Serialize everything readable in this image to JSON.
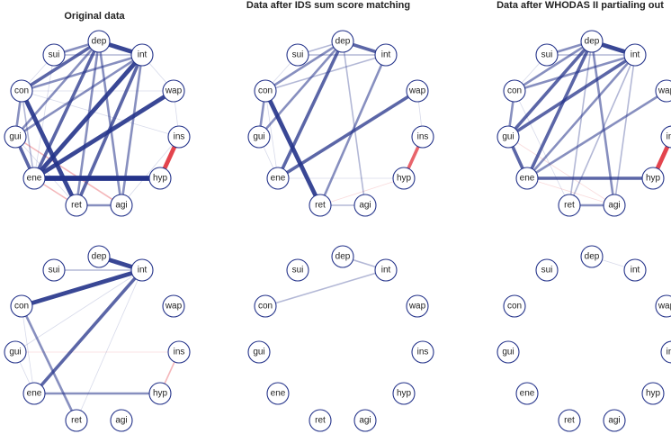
{
  "panels": [
    {
      "title": "Original data",
      "edges": [
        [
          "dep",
          "int",
          5,
          "pos"
        ],
        [
          "dep",
          "sui",
          3,
          "pos"
        ],
        [
          "dep",
          "con",
          4,
          "pos"
        ],
        [
          "dep",
          "gui",
          3,
          "pos"
        ],
        [
          "dep",
          "ene",
          4,
          "pos"
        ],
        [
          "dep",
          "ret",
          3,
          "pos"
        ],
        [
          "dep",
          "agi",
          3,
          "pos"
        ],
        [
          "int",
          "sui",
          2,
          "pos"
        ],
        [
          "int",
          "con",
          3,
          "pos"
        ],
        [
          "int",
          "gui",
          3,
          "pos"
        ],
        [
          "int",
          "ene",
          5,
          "pos"
        ],
        [
          "int",
          "ret",
          4,
          "pos"
        ],
        [
          "int",
          "agi",
          3,
          "pos"
        ],
        [
          "int",
          "wap",
          1,
          "pos"
        ],
        [
          "sui",
          "con",
          1,
          "pos"
        ],
        [
          "con",
          "gui",
          3,
          "pos"
        ],
        [
          "con",
          "ret",
          5,
          "pos"
        ],
        [
          "con",
          "ene",
          2,
          "pos"
        ],
        [
          "con",
          "wap",
          1,
          "pos"
        ],
        [
          "con",
          "ins",
          1,
          "pos"
        ],
        [
          "gui",
          "ene",
          4,
          "pos"
        ],
        [
          "gui",
          "agi",
          2,
          "neg"
        ],
        [
          "gui",
          "ret",
          1,
          "pos"
        ],
        [
          "wap",
          "ene",
          5,
          "pos"
        ],
        [
          "wap",
          "ins",
          1,
          "pos"
        ],
        [
          "ins",
          "hyp",
          5,
          "neg"
        ],
        [
          "ene",
          "hyp",
          6,
          "pos"
        ],
        [
          "ene",
          "ret",
          2,
          "neg"
        ],
        [
          "ret",
          "agi",
          3,
          "pos"
        ],
        [
          "agi",
          "ins",
          1,
          "pos"
        ],
        [
          "sui",
          "ene",
          1,
          "pos"
        ]
      ]
    },
    {
      "title": "Data after IDS sum score matching",
      "edges": [
        [
          "dep",
          "int",
          4,
          "pos"
        ],
        [
          "dep",
          "sui",
          2,
          "pos"
        ],
        [
          "dep",
          "con",
          3,
          "pos"
        ],
        [
          "dep",
          "gui",
          3,
          "pos"
        ],
        [
          "dep",
          "ene",
          4,
          "pos"
        ],
        [
          "dep",
          "agi",
          2,
          "pos"
        ],
        [
          "int",
          "sui",
          2,
          "pos"
        ],
        [
          "int",
          "ret",
          3,
          "pos"
        ],
        [
          "int",
          "con",
          2,
          "pos"
        ],
        [
          "con",
          "gui",
          3,
          "pos"
        ],
        [
          "con",
          "ret",
          5,
          "pos"
        ],
        [
          "con",
          "ene",
          1,
          "pos"
        ],
        [
          "gui",
          "ene",
          1,
          "pos"
        ],
        [
          "wap",
          "ene",
          4,
          "pos"
        ],
        [
          "wap",
          "ins",
          1,
          "pos"
        ],
        [
          "ins",
          "hyp",
          4,
          "neg"
        ],
        [
          "hyp",
          "ene",
          1,
          "pos"
        ],
        [
          "hyp",
          "ret",
          1,
          "neg"
        ],
        [
          "ret",
          "agi",
          2,
          "pos"
        ],
        [
          "sui",
          "con",
          1,
          "pos"
        ]
      ]
    },
    {
      "title": "Data after WHODAS II partialing out",
      "edges": [
        [
          "dep",
          "int",
          5,
          "pos"
        ],
        [
          "dep",
          "sui",
          3,
          "pos"
        ],
        [
          "dep",
          "con",
          3,
          "pos"
        ],
        [
          "dep",
          "gui",
          4,
          "pos"
        ],
        [
          "dep",
          "ene",
          4,
          "pos"
        ],
        [
          "dep",
          "ret",
          2,
          "pos"
        ],
        [
          "dep",
          "agi",
          3,
          "pos"
        ],
        [
          "int",
          "sui",
          2,
          "pos"
        ],
        [
          "int",
          "con",
          3,
          "pos"
        ],
        [
          "int",
          "gui",
          4,
          "pos"
        ],
        [
          "int",
          "ene",
          3,
          "pos"
        ],
        [
          "int",
          "ret",
          2,
          "pos"
        ],
        [
          "int",
          "agi",
          2,
          "pos"
        ],
        [
          "con",
          "gui",
          3,
          "pos"
        ],
        [
          "con",
          "ret",
          1,
          "pos"
        ],
        [
          "gui",
          "ene",
          4,
          "pos"
        ],
        [
          "gui",
          "agi",
          1,
          "neg"
        ],
        [
          "wap",
          "ene",
          3,
          "pos"
        ],
        [
          "ins",
          "hyp",
          5,
          "neg"
        ],
        [
          "ene",
          "hyp",
          4,
          "pos"
        ],
        [
          "ene",
          "agi",
          1,
          "neg"
        ],
        [
          "ret",
          "agi",
          3,
          "pos"
        ],
        [
          "sui",
          "con",
          1,
          "pos"
        ]
      ]
    },
    {
      "title": "",
      "edges": [
        [
          "dep",
          "int",
          5,
          "pos"
        ],
        [
          "int",
          "con",
          5,
          "pos"
        ],
        [
          "sui",
          "int",
          2,
          "pos"
        ],
        [
          "int",
          "ene",
          4,
          "pos"
        ],
        [
          "int",
          "ret",
          1,
          "pos"
        ],
        [
          "int",
          "gui",
          1,
          "pos"
        ],
        [
          "con",
          "ret",
          3,
          "pos"
        ],
        [
          "con",
          "ene",
          1,
          "pos"
        ],
        [
          "gui",
          "ins",
          1,
          "neg"
        ],
        [
          "ene",
          "hyp",
          3,
          "pos"
        ],
        [
          "ins",
          "hyp",
          2,
          "neg"
        ],
        [
          "gui",
          "ene",
          1,
          "pos"
        ]
      ]
    },
    {
      "title": "",
      "edges": [
        [
          "dep",
          "int",
          2,
          "pos"
        ],
        [
          "int",
          "con",
          2,
          "pos"
        ]
      ]
    },
    {
      "title": "",
      "edges": [
        [
          "dep",
          "int",
          1,
          "pos"
        ]
      ]
    }
  ],
  "node_labels": [
    "dep",
    "int",
    "wap",
    "ins",
    "hyp",
    "agi",
    "ret",
    "ene",
    "gui",
    "con",
    "sui"
  ],
  "colors": {
    "positive": "#24338a",
    "negative": "#e0303a",
    "node_stroke": "#24338a"
  }
}
